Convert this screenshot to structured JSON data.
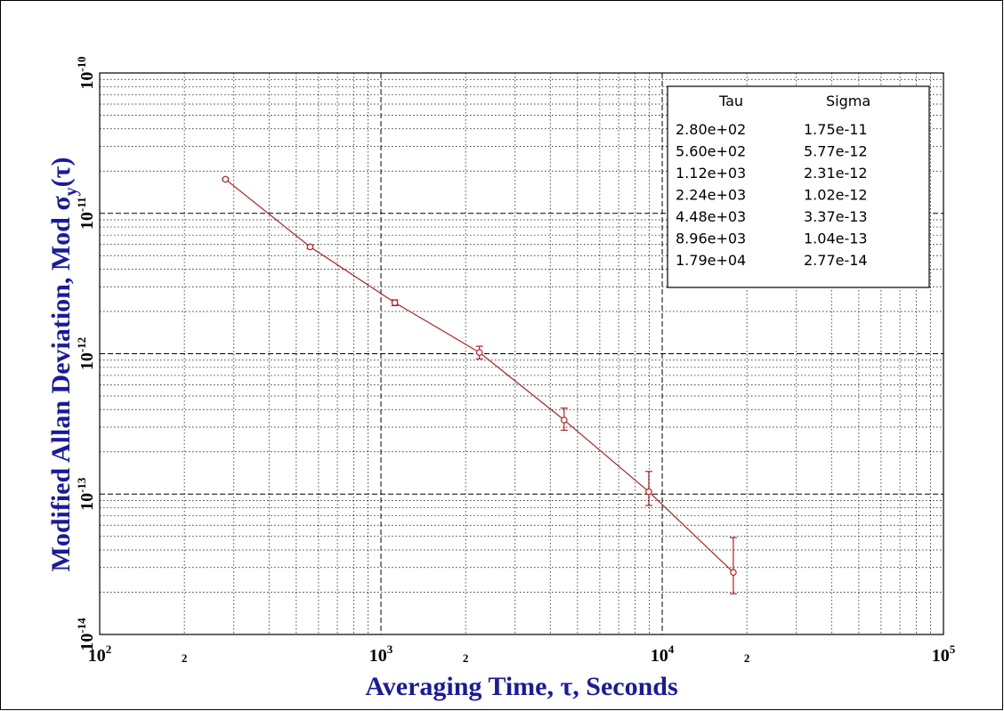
{
  "chart_data": {
    "type": "line",
    "xscale": "log",
    "yscale": "log",
    "xlim": [
      100,
      100000
    ],
    "ylim": [
      1e-14,
      1e-10
    ],
    "xlabel": "Averaging Time, τ, Seconds",
    "ylabel_parts": {
      "prefix": "Modified Allan Deviation, Mod ",
      "sigma": "σ",
      "sub": "y",
      "suffix": "(τ)"
    },
    "x_major_ticks": [
      {
        "value": 100,
        "base": "10",
        "exp": "2"
      },
      {
        "value": 1000,
        "base": "10",
        "exp": "3"
      },
      {
        "value": 10000,
        "base": "10",
        "exp": "4"
      },
      {
        "value": 100000,
        "base": "10",
        "exp": "5"
      }
    ],
    "x_minor_labels": [
      {
        "value": 200,
        "label": "2"
      },
      {
        "value": 2000,
        "label": "2"
      },
      {
        "value": 20000,
        "label": "2"
      }
    ],
    "y_major_ticks": [
      {
        "value": 1e-14,
        "base": "10",
        "exp": "-14"
      },
      {
        "value": 1e-13,
        "base": "10",
        "exp": "-13"
      },
      {
        "value": 1e-12,
        "base": "10",
        "exp": "-12"
      },
      {
        "value": 1e-11,
        "base": "10",
        "exp": "-11"
      },
      {
        "value": 1e-10,
        "base": "10",
        "exp": "-10"
      }
    ],
    "grid": true,
    "series": [
      {
        "x": [
          280,
          560,
          1120,
          2240,
          4480,
          8960,
          17900
        ],
        "y": [
          1.75e-11,
          5.77e-12,
          2.31e-12,
          1.02e-12,
          3.37e-13,
          1.04e-13,
          2.77e-14
        ],
        "err_low": [
          1.72e-11,
          5.6e-12,
          2.2e-12,
          9.2e-13,
          2.85e-13,
          8.3e-14,
          1.95e-14
        ],
        "err_high": [
          1.78e-11,
          5.95e-12,
          2.42e-12,
          1.13e-12,
          4.1e-13,
          1.45e-13,
          4.9e-14
        ],
        "color": "#b22222"
      }
    ],
    "legend": {
      "placement": "top-right",
      "headers": [
        "Tau",
        "Sigma"
      ],
      "rows": [
        [
          "2.80e+02",
          "1.75e-11"
        ],
        [
          "5.60e+02",
          "5.77e-12"
        ],
        [
          "1.12e+03",
          "2.31e-12"
        ],
        [
          "2.24e+03",
          "1.02e-12"
        ],
        [
          "4.48e+03",
          "3.37e-13"
        ],
        [
          "8.96e+03",
          "1.04e-13"
        ],
        [
          "1.79e+04",
          "2.77e-14"
        ]
      ]
    },
    "colors": {
      "axis_title": "#1a1a9c",
      "data": "#b22222",
      "grid": "#000000"
    }
  }
}
